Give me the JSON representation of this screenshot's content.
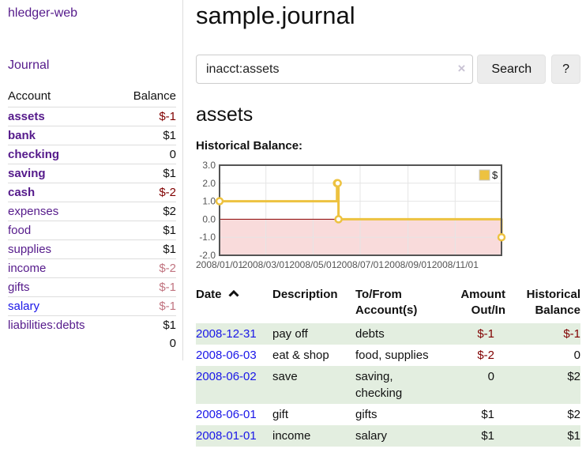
{
  "sidebar": {
    "brand": "hledger-web",
    "nav": {
      "journal": "Journal"
    },
    "accounts_table": {
      "headers": {
        "account": "Account",
        "balance": "Balance"
      },
      "rows": [
        {
          "name": "assets",
          "balance": "$-1"
        },
        {
          "name": "bank",
          "balance": "$1"
        },
        {
          "name": "checking",
          "balance": "0"
        },
        {
          "name": "saving",
          "balance": "$1"
        },
        {
          "name": "cash",
          "balance": "$-2"
        },
        {
          "name": "expenses",
          "balance": "$2"
        },
        {
          "name": "food",
          "balance": "$1"
        },
        {
          "name": "supplies",
          "balance": "$1"
        },
        {
          "name": "income",
          "balance": "$-2"
        },
        {
          "name": "gifts",
          "balance": "$-1"
        },
        {
          "name": "salary",
          "balance": "$-1"
        },
        {
          "name": "liabilities:debts",
          "balance": "$1"
        }
      ],
      "total": "0"
    }
  },
  "main": {
    "title": "sample.journal",
    "search": {
      "value": "inacct:assets",
      "clear_icon": "×",
      "button": "Search",
      "help_button": "?"
    },
    "account_heading": "assets",
    "chart_heading": "Historical Balance:"
  },
  "chart_data": {
    "type": "line",
    "title": "Historical Balance:",
    "step": true,
    "series": [
      {
        "name": "$",
        "points": [
          [
            "2008-01-01",
            1
          ],
          [
            "2008-06-01",
            2
          ],
          [
            "2008-06-02",
            2
          ],
          [
            "2008-06-03",
            0
          ],
          [
            "2008-12-31",
            -1
          ]
        ]
      }
    ],
    "yticks": [
      3,
      2,
      1,
      0,
      -1,
      -2
    ],
    "xticks": [
      "2008/01/01",
      "2008/03/01",
      "2008/05/01",
      "2008/07/01",
      "2008/09/01",
      "2008/11/01"
    ],
    "ylim": [
      -2,
      3
    ],
    "x_range": [
      "2008-01-01",
      "2008-12-31"
    ],
    "line_color": "#edc240",
    "zero_line_color": "#8b0000",
    "negative_region_color": "#f9dbdb",
    "legend_position": "top-right",
    "grid": true
  },
  "register": {
    "headers": {
      "date": "Date",
      "description": "Description",
      "accounts": "To/From Account(s)",
      "amount": "Amount Out/In",
      "balance": "Historical Balance"
    },
    "rows": [
      {
        "date": "2008-12-31",
        "description": "pay off",
        "accounts": "debts",
        "amount": "$-1",
        "balance": "$-1"
      },
      {
        "date": "2008-06-03",
        "description": "eat & shop",
        "accounts": "food, supplies",
        "amount": "$-2",
        "balance": "0"
      },
      {
        "date": "2008-06-02",
        "description": "save",
        "accounts": "saving, checking",
        "amount": "0",
        "balance": "$2"
      },
      {
        "date": "2008-06-01",
        "description": "gift",
        "accounts": "gifts",
        "amount": "$1",
        "balance": "$2"
      },
      {
        "date": "2008-01-01",
        "description": "income",
        "accounts": "salary",
        "amount": "$1",
        "balance": "$1"
      }
    ]
  }
}
